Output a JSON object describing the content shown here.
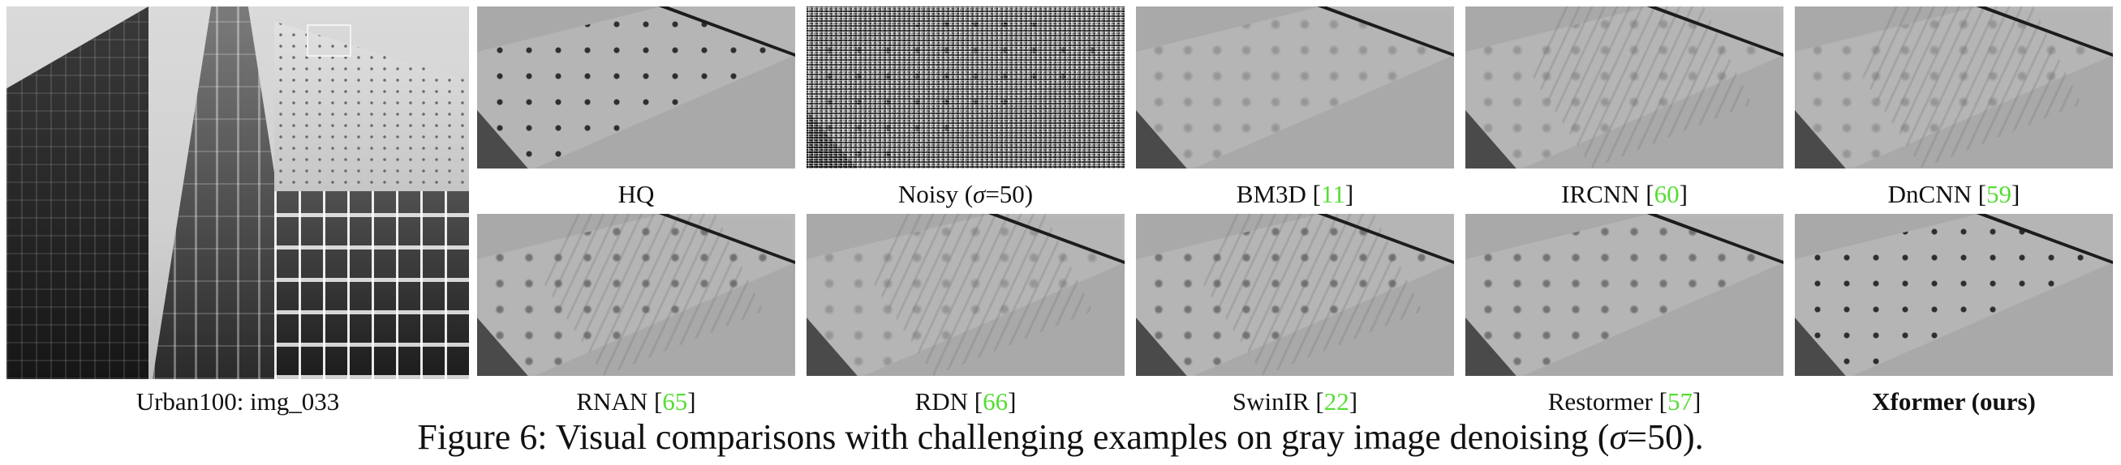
{
  "overview": {
    "caption": "Urban100: img_033"
  },
  "tiles": [
    {
      "caption": "HQ",
      "ref": "",
      "bold": false
    },
    {
      "caption_pre": "Noisy (",
      "sigma": "σ",
      "caption_post": "=50)",
      "ref": "",
      "bold": false
    },
    {
      "caption": "BM3D [",
      "ref": "11",
      "close": "]",
      "bold": false
    },
    {
      "caption": "IRCNN [",
      "ref": "60",
      "close": "]",
      "bold": false
    },
    {
      "caption": "DnCNN [",
      "ref": "59",
      "close": "]",
      "bold": false
    },
    {
      "caption": "RNAN [",
      "ref": "65",
      "close": "]",
      "bold": false
    },
    {
      "caption": "RDN [",
      "ref": "66",
      "close": "]",
      "bold": false
    },
    {
      "caption": "SwinIR [",
      "ref": "22",
      "close": "]",
      "bold": false
    },
    {
      "caption": "Restormer [",
      "ref": "57",
      "close": "]",
      "bold": false
    },
    {
      "caption": "Xformer (ours)",
      "ref": "",
      "bold": true
    }
  ],
  "figure_caption": {
    "pre": "Figure 6: Visual comparisons with challenging examples on gray image denoising (",
    "sigma": "σ",
    "post": "=50)."
  },
  "colors": {
    "citation": "#55dd33"
  }
}
